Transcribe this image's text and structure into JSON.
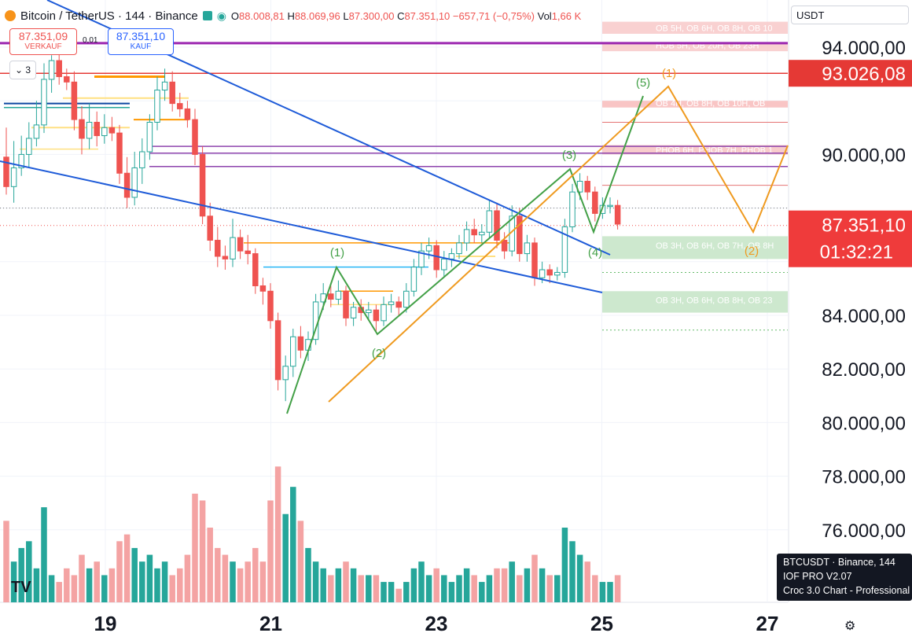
{
  "header": {
    "symbol": "Bitcoin / TetherUS · 144 · Binance",
    "open_label": "O",
    "open": "88.008,81",
    "high_label": "H",
    "high": "88.069,96",
    "low_label": "L",
    "low": "87.300,00",
    "close_label": "C",
    "close": "87.351,10",
    "change": "−657,71 (−0,75%)",
    "vol_label": "Vol",
    "vol": "1,66 K"
  },
  "trade": {
    "sell_price": "87.351,09",
    "sell_label": "VERKAUF",
    "spread": "0,01",
    "buy_price": "87.351,10",
    "buy_label": "KAUF"
  },
  "indicators_count": "3",
  "currency": "USDT",
  "price_labels": {
    "line": "93.026,08",
    "last": "87.351,10",
    "countdown": "01:32:21"
  },
  "zone_labels": {
    "z1": "OB 5H, OB 6H, OB 8H, OB 10",
    "z2": "HOB 5H, OB 20H, OB 23H",
    "z3": "OB 4H, OB 8H, OB 10H, OB",
    "z4": "PHOB 6H, PHOB 7H, PHOB 1",
    "z5": "OB 3H, OB 6H, OB 7H, OB 8H",
    "z6": "OB 3H, OB 6H, OB 8H, OB 23"
  },
  "wave_labels": {
    "g1": "(1)",
    "g2": "(2)",
    "g3": "(3)",
    "g4": "(4)",
    "g5": "(5)",
    "o1": "(1)",
    "o2": "(2)"
  },
  "tooltip": {
    "line1": "BTCUSDT · Binance, 144",
    "line2": "IOF PRO V2.07",
    "line3": "Croc 3.0 Chart - Professional"
  },
  "logo": "TV",
  "colors": {
    "up": "#26a69a",
    "down": "#ef5350",
    "upvol": "#26a69a",
    "downvol": "#f4a3a3"
  },
  "chart_data": {
    "type": "candlestick",
    "y_axis_ticks": [
      94000,
      90000,
      84000,
      82000,
      80000,
      78000,
      76000
    ],
    "y_tick_labels": [
      "94.000,00",
      "90.000,00",
      "84.000,00",
      "82.000,00",
      "80.000,00",
      "78.000,00",
      "76.000,00"
    ],
    "ylim": [
      75000,
      95000
    ],
    "x_tick_labels": [
      "19",
      "21",
      "23",
      "25",
      "27"
    ],
    "x_ticks_day": [
      19,
      21,
      23,
      25,
      27
    ],
    "xlim_day": [
      17.75,
      27.4
    ],
    "candles": [
      {
        "o": 89900,
        "c": 88800,
        "h": 91000,
        "l": 88500,
        "v": 1.2
      },
      {
        "o": 88800,
        "c": 89500,
        "h": 90500,
        "l": 88200,
        "v": 0.6
      },
      {
        "o": 89500,
        "c": 90000,
        "h": 90700,
        "l": 89200,
        "v": 0.8
      },
      {
        "o": 90000,
        "c": 90600,
        "h": 91200,
        "l": 89500,
        "v": 0.9
      },
      {
        "o": 90600,
        "c": 91100,
        "h": 92000,
        "l": 90300,
        "v": 0.5
      },
      {
        "o": 91100,
        "c": 92800,
        "h": 93400,
        "l": 90800,
        "v": 1.4
      },
      {
        "o": 92800,
        "c": 93500,
        "h": 93700,
        "l": 92300,
        "v": 0.4
      },
      {
        "o": 93500,
        "c": 92900,
        "h": 93800,
        "l": 92600,
        "v": 0.3
      },
      {
        "o": 92900,
        "c": 92700,
        "h": 93200,
        "l": 92400,
        "v": 0.5
      },
      {
        "o": 92700,
        "c": 91300,
        "h": 93100,
        "l": 90900,
        "v": 0.4
      },
      {
        "o": 91300,
        "c": 90600,
        "h": 91800,
        "l": 90000,
        "v": 0.7
      },
      {
        "o": 90600,
        "c": 91200,
        "h": 91900,
        "l": 90200,
        "v": 0.5
      },
      {
        "o": 91200,
        "c": 90700,
        "h": 91600,
        "l": 90300,
        "v": 0.6
      },
      {
        "o": 90700,
        "c": 91000,
        "h": 91500,
        "l": 90400,
        "v": 0.4
      },
      {
        "o": 91000,
        "c": 90800,
        "h": 91400,
        "l": 90500,
        "v": 0.5
      },
      {
        "o": 90800,
        "c": 89300,
        "h": 91100,
        "l": 88900,
        "v": 0.9
      },
      {
        "o": 89300,
        "c": 88400,
        "h": 89900,
        "l": 88000,
        "v": 1.0
      },
      {
        "o": 88400,
        "c": 89500,
        "h": 90100,
        "l": 88100,
        "v": 0.8
      },
      {
        "o": 89500,
        "c": 90100,
        "h": 90600,
        "l": 88900,
        "v": 0.6
      },
      {
        "o": 90100,
        "c": 91200,
        "h": 91500,
        "l": 89800,
        "v": 0.7
      },
      {
        "o": 91200,
        "c": 92400,
        "h": 92900,
        "l": 90900,
        "v": 0.5
      },
      {
        "o": 92400,
        "c": 92700,
        "h": 93200,
        "l": 92000,
        "v": 0.6
      },
      {
        "o": 92700,
        "c": 91900,
        "h": 93100,
        "l": 91600,
        "v": 0.4
      },
      {
        "o": 91900,
        "c": 91700,
        "h": 92300,
        "l": 91400,
        "v": 0.5
      },
      {
        "o": 91700,
        "c": 91300,
        "h": 92000,
        "l": 91000,
        "v": 0.7
      },
      {
        "o": 91300,
        "c": 90000,
        "h": 91700,
        "l": 89600,
        "v": 1.6
      },
      {
        "o": 90000,
        "c": 87700,
        "h": 90300,
        "l": 87400,
        "v": 1.5
      },
      {
        "o": 87700,
        "c": 86800,
        "h": 88200,
        "l": 86400,
        "v": 1.1
      },
      {
        "o": 86800,
        "c": 86200,
        "h": 87300,
        "l": 85800,
        "v": 0.8
      },
      {
        "o": 86200,
        "c": 86100,
        "h": 86600,
        "l": 85700,
        "v": 0.7
      },
      {
        "o": 86100,
        "c": 86900,
        "h": 87600,
        "l": 85800,
        "v": 0.6
      },
      {
        "o": 86900,
        "c": 86400,
        "h": 87200,
        "l": 86100,
        "v": 0.5
      },
      {
        "o": 86400,
        "c": 86300,
        "h": 87000,
        "l": 85900,
        "v": 0.6
      },
      {
        "o": 86300,
        "c": 85100,
        "h": 86500,
        "l": 84800,
        "v": 0.8
      },
      {
        "o": 85100,
        "c": 84900,
        "h": 85400,
        "l": 84400,
        "v": 0.6
      },
      {
        "o": 84900,
        "c": 83800,
        "h": 85200,
        "l": 83500,
        "v": 1.5
      },
      {
        "o": 83800,
        "c": 81600,
        "h": 84100,
        "l": 81200,
        "v": 2.0
      },
      {
        "o": 81600,
        "c": 82100,
        "h": 82500,
        "l": 80800,
        "v": 1.3
      },
      {
        "o": 82100,
        "c": 83200,
        "h": 83500,
        "l": 81700,
        "v": 1.7
      },
      {
        "o": 83200,
        "c": 82700,
        "h": 83600,
        "l": 82400,
        "v": 1.2
      },
      {
        "o": 82700,
        "c": 83100,
        "h": 83400,
        "l": 82300,
        "v": 0.8
      },
      {
        "o": 83100,
        "c": 84500,
        "h": 84800,
        "l": 82900,
        "v": 0.6
      },
      {
        "o": 84500,
        "c": 84800,
        "h": 85200,
        "l": 84200,
        "v": 0.5
      },
      {
        "o": 84800,
        "c": 84600,
        "h": 85100,
        "l": 84300,
        "v": 0.4
      },
      {
        "o": 84600,
        "c": 84900,
        "h": 85300,
        "l": 84400,
        "v": 0.5
      },
      {
        "o": 84900,
        "c": 83900,
        "h": 85100,
        "l": 83600,
        "v": 0.6
      },
      {
        "o": 83900,
        "c": 84300,
        "h": 84500,
        "l": 83600,
        "v": 0.5
      },
      {
        "o": 84300,
        "c": 84100,
        "h": 84600,
        "l": 83800,
        "v": 0.4
      },
      {
        "o": 84100,
        "c": 84200,
        "h": 84500,
        "l": 83800,
        "v": 0.4
      },
      {
        "o": 84200,
        "c": 83800,
        "h": 84400,
        "l": 83400,
        "v": 0.4
      },
      {
        "o": 83800,
        "c": 84400,
        "h": 84700,
        "l": 83600,
        "v": 0.3
      },
      {
        "o": 84400,
        "c": 84500,
        "h": 84800,
        "l": 84100,
        "v": 0.3
      },
      {
        "o": 84500,
        "c": 84300,
        "h": 84700,
        "l": 84000,
        "v": 0.2
      },
      {
        "o": 84300,
        "c": 84900,
        "h": 85200,
        "l": 84100,
        "v": 0.3
      },
      {
        "o": 84900,
        "c": 85800,
        "h": 86100,
        "l": 84700,
        "v": 0.5
      },
      {
        "o": 85800,
        "c": 86400,
        "h": 86700,
        "l": 85500,
        "v": 0.6
      },
      {
        "o": 86400,
        "c": 86600,
        "h": 86900,
        "l": 86100,
        "v": 0.4
      },
      {
        "o": 86600,
        "c": 85700,
        "h": 86800,
        "l": 85400,
        "v": 0.5
      },
      {
        "o": 85700,
        "c": 86100,
        "h": 86400,
        "l": 85400,
        "v": 0.4
      },
      {
        "o": 86100,
        "c": 86300,
        "h": 86500,
        "l": 85800,
        "v": 0.3
      },
      {
        "o": 86300,
        "c": 86700,
        "h": 87000,
        "l": 86100,
        "v": 0.4
      },
      {
        "o": 86700,
        "c": 87200,
        "h": 87500,
        "l": 86400,
        "v": 0.5
      },
      {
        "o": 87200,
        "c": 87000,
        "h": 87600,
        "l": 86700,
        "v": 0.4
      },
      {
        "o": 87000,
        "c": 87100,
        "h": 87400,
        "l": 86700,
        "v": 0.3
      },
      {
        "o": 87100,
        "c": 87900,
        "h": 88300,
        "l": 86900,
        "v": 0.4
      },
      {
        "o": 87900,
        "c": 86800,
        "h": 88200,
        "l": 86500,
        "v": 0.5
      },
      {
        "o": 86800,
        "c": 86400,
        "h": 87100,
        "l": 86100,
        "v": 0.5
      },
      {
        "o": 86400,
        "c": 87700,
        "h": 88100,
        "l": 86200,
        "v": 0.6
      },
      {
        "o": 87700,
        "c": 86300,
        "h": 88000,
        "l": 86000,
        "v": 0.4
      },
      {
        "o": 86300,
        "c": 86700,
        "h": 87000,
        "l": 86000,
        "v": 0.5
      },
      {
        "o": 86700,
        "c": 85400,
        "h": 86900,
        "l": 85100,
        "v": 0.7
      },
      {
        "o": 85400,
        "c": 85700,
        "h": 86000,
        "l": 85200,
        "v": 0.5
      },
      {
        "o": 85700,
        "c": 85500,
        "h": 85900,
        "l": 85200,
        "v": 0.4
      },
      {
        "o": 85500,
        "c": 85600,
        "h": 85800,
        "l": 85300,
        "v": 0.4
      },
      {
        "o": 85600,
        "c": 87300,
        "h": 87600,
        "l": 85400,
        "v": 1.1
      },
      {
        "o": 87300,
        "c": 88600,
        "h": 88900,
        "l": 87100,
        "v": 0.9
      },
      {
        "o": 88600,
        "c": 89000,
        "h": 89300,
        "l": 88300,
        "v": 0.7
      },
      {
        "o": 89000,
        "c": 88600,
        "h": 89200,
        "l": 88300,
        "v": 0.6
      },
      {
        "o": 88600,
        "c": 87800,
        "h": 88800,
        "l": 87500,
        "v": 0.4
      },
      {
        "o": 87800,
        "c": 88100,
        "h": 88400,
        "l": 87600,
        "v": 0.3
      },
      {
        "o": 88100,
        "c": 88100,
        "h": 88400,
        "l": 87800,
        "v": 0.3
      },
      {
        "o": 88100,
        "c": 87400,
        "h": 88300,
        "l": 87200,
        "v": 0.4
      }
    ],
    "volume_scale_max": 2.2
  }
}
